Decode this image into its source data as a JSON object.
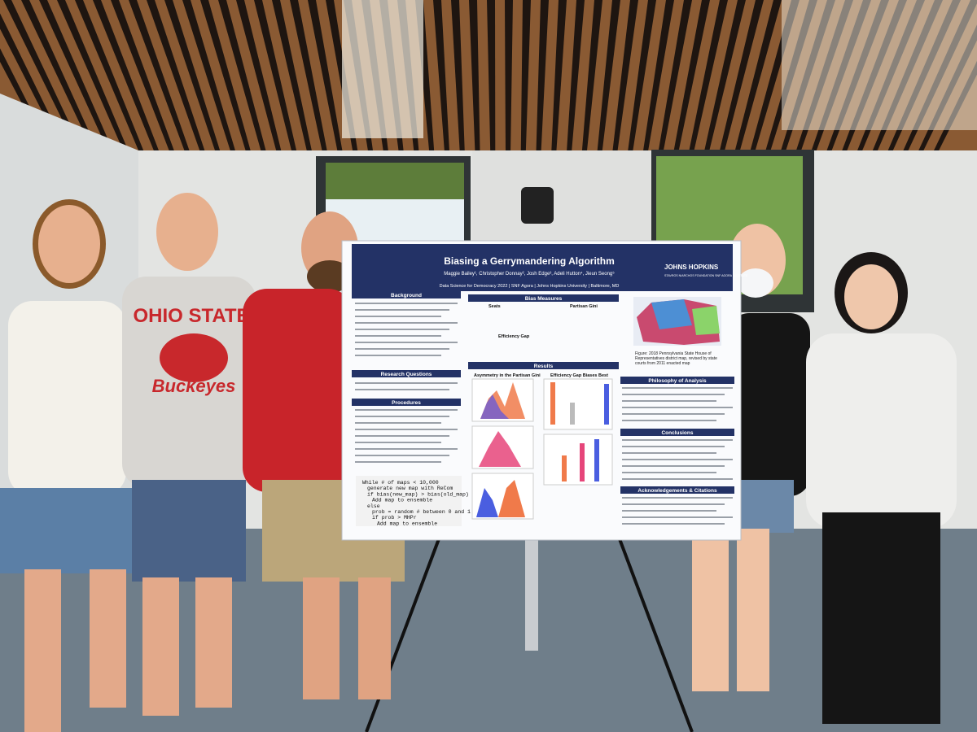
{
  "poster": {
    "title": "Biasing a Gerrymandering Algorithm",
    "authors": "Maggie Bailey¹, Christopher Donnay², Josh Edge³, Adeli Hutton⁴, Jieun Seong⁵",
    "event": "Data Science for Democracy 2022 | SNF Agora | Johns Hopkins University | Baltimore, MD",
    "logo": "JOHNS HOPKINS",
    "logo_sub": "STAVROS NIARCHOS FOUNDATION SNF AGORA INSTITUTE",
    "sections": [
      "Background",
      "Research Questions",
      "Procedures",
      "Bias Measures",
      "Results",
      "Philosophy of Analysis",
      "Conclusions",
      "Acknowledgements & Citations"
    ],
    "subheads": [
      "Seats",
      "Partisan Gini",
      "Efficiency Gap",
      "Asymmetry in the Partisan Gini",
      "Efficiency Gap Biases Best"
    ],
    "figure_caption": "Figure: 2018 Pennsylvania State House of Representatives district map, revised by state courts from 2011 enacted map",
    "code": [
      "While # of maps < 10,000",
      "generate new map with ReCom",
      "if bias(new_map) > bias(old_map)",
      "Add map to ensemble",
      "else",
      "prob = random # between 0 and 1",
      "if prob > MHPr",
      "Add map to ensemble"
    ]
  },
  "shirt": {
    "line1": "OHIO STATE",
    "line2": "Buckeyes"
  }
}
